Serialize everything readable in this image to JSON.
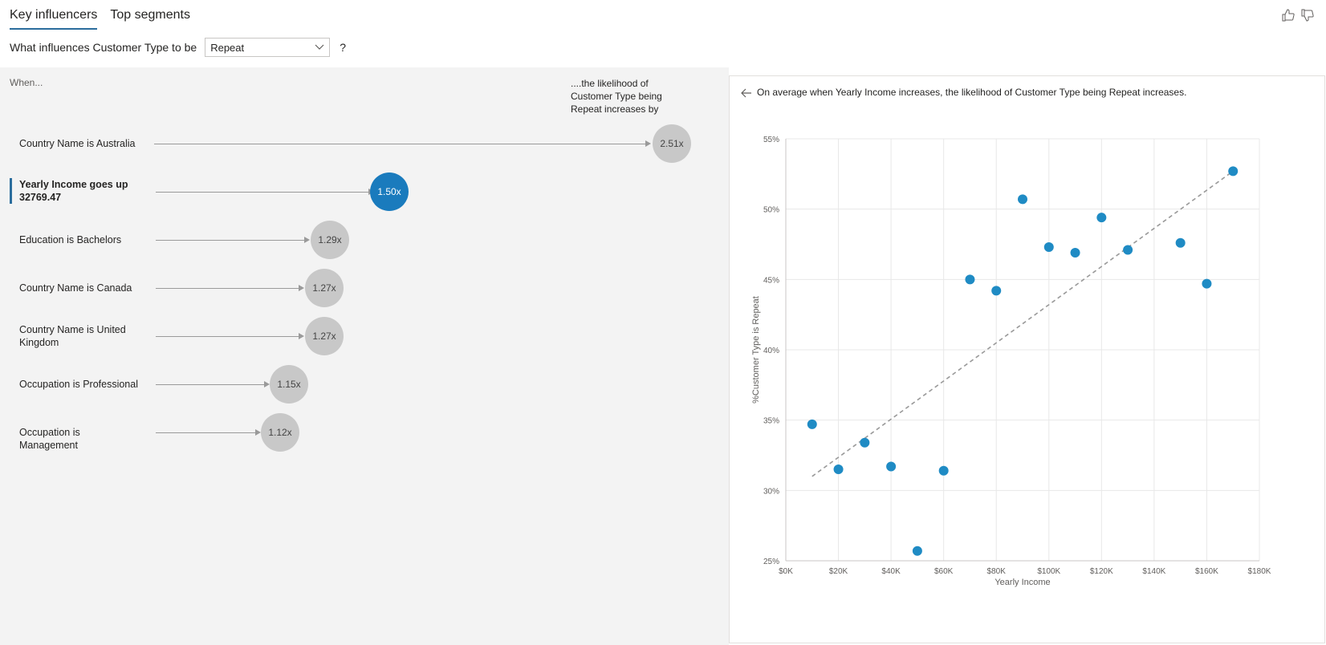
{
  "tabs": [
    {
      "label": "Key influencers",
      "active": true
    },
    {
      "label": "Top segments",
      "active": false
    }
  ],
  "feedback": {
    "like_icon": "thumbs-up-icon",
    "dislike_icon": "thumbs-down-icon"
  },
  "question": {
    "prefix": "What influences Customer Type to be",
    "dropdown_value": "Repeat",
    "suffix": "?"
  },
  "left": {
    "when_label": "When...",
    "likelihood_label": "....the likelihood of Customer Type being Repeat increases by",
    "influencers": [
      {
        "label": "Country Name is Australia",
        "value": "2.51x",
        "selected": false
      },
      {
        "label": "Yearly Income goes up 32769.47",
        "value": "1.50x",
        "selected": true
      },
      {
        "label": "Education is Bachelors",
        "value": "1.29x",
        "selected": false
      },
      {
        "label": "Country Name is Canada",
        "value": "1.27x",
        "selected": false
      },
      {
        "label": "Country Name is United Kingdom",
        "value": "1.27x",
        "selected": false
      },
      {
        "label": "Occupation is Professional",
        "value": "1.15x",
        "selected": false
      },
      {
        "label": "Occupation is Management",
        "value": "1.12x",
        "selected": false
      }
    ]
  },
  "right": {
    "description": "On average when Yearly Income increases, the likelihood of Customer Type being Repeat increases."
  },
  "chart_data": {
    "type": "scatter",
    "xlabel": "Yearly Income",
    "ylabel": "%Customer Type is Repeat",
    "xlim": [
      0,
      180000
    ],
    "ylim": [
      25,
      55
    ],
    "x_ticks": [
      "$0K",
      "$20K",
      "$40K",
      "$60K",
      "$80K",
      "$100K",
      "$120K",
      "$140K",
      "$160K",
      "$180K"
    ],
    "y_ticks": [
      "25%",
      "30%",
      "35%",
      "40%",
      "45%",
      "50%",
      "55%"
    ],
    "grid": true,
    "point_color": "#1f8bc4",
    "trendline_color": "#999999",
    "points": [
      {
        "x": 10000,
        "y": 34.7
      },
      {
        "x": 20000,
        "y": 31.5
      },
      {
        "x": 30000,
        "y": 33.4
      },
      {
        "x": 40000,
        "y": 31.7
      },
      {
        "x": 50000,
        "y": 25.7
      },
      {
        "x": 60000,
        "y": 31.4
      },
      {
        "x": 70000,
        "y": 45.0
      },
      {
        "x": 80000,
        "y": 44.2
      },
      {
        "x": 90000,
        "y": 50.7
      },
      {
        "x": 100000,
        "y": 47.3
      },
      {
        "x": 110000,
        "y": 46.9
      },
      {
        "x": 120000,
        "y": 49.4
      },
      {
        "x": 130000,
        "y": 47.1
      },
      {
        "x": 150000,
        "y": 47.6
      },
      {
        "x": 160000,
        "y": 44.7
      },
      {
        "x": 170000,
        "y": 52.7
      }
    ],
    "trendline": {
      "x": [
        10000,
        170000
      ],
      "y": [
        31.0,
        52.7
      ]
    }
  }
}
